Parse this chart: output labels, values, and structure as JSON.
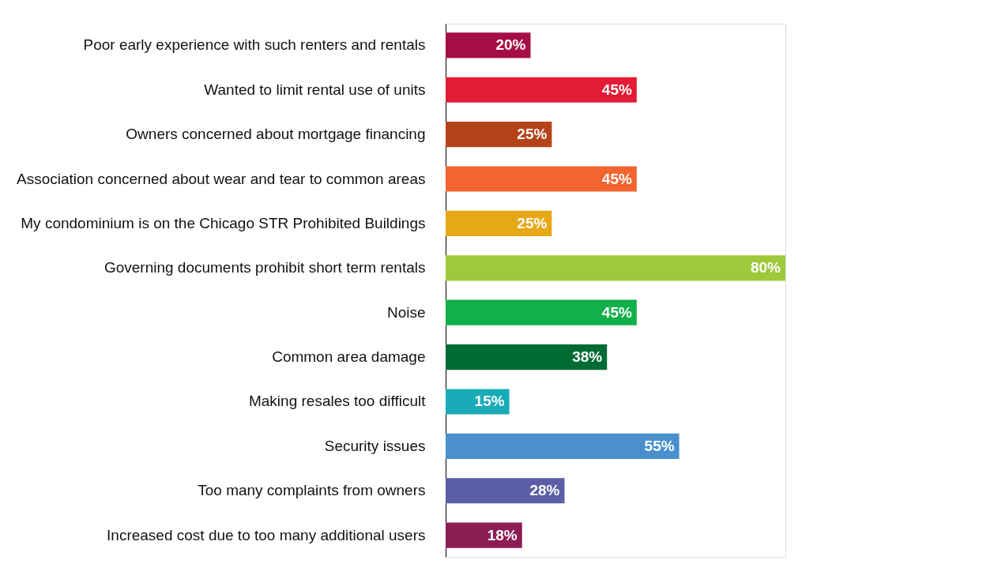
{
  "chart_data": {
    "type": "bar",
    "orientation": "horizontal",
    "categories": [
      "Poor early experience with such renters and rentals",
      "Wanted to limit rental use of units",
      "Owners concerned about mortgage financing",
      "Association concerned about wear and tear to common areas",
      "My condominium is on the Chicago STR Prohibited Buildings",
      "Governing documents prohibit short term rentals",
      "Noise",
      "Common area damage",
      "Making resales too difficult",
      "Security issues",
      "Too many complaints from owners",
      "Increased cost due to too many additional users"
    ],
    "values": [
      20,
      45,
      25,
      45,
      25,
      80,
      45,
      38,
      15,
      55,
      28,
      18
    ],
    "value_labels": [
      "20%",
      "45%",
      "25%",
      "45%",
      "25%",
      "80%",
      "45%",
      "38%",
      "15%",
      "55%",
      "28%",
      "18%"
    ],
    "colors": [
      "#a50e45",
      "#e31b36",
      "#b5431a",
      "#f26531",
      "#e6a817",
      "#9dc93b",
      "#12b04a",
      "#006b33",
      "#1aabb8",
      "#4a90cf",
      "#5b5ea6",
      "#8c1d55"
    ]
  }
}
